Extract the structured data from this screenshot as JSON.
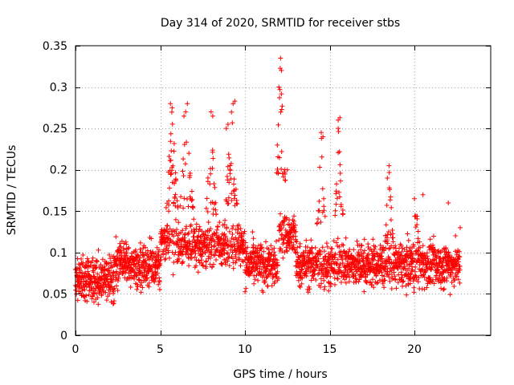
{
  "chart_data": {
    "type": "scatter",
    "title": "Day 314 of 2020, SRMTID for receiver stbs",
    "xlabel": "GPS time / hours",
    "ylabel": "SRMTID / TECUs",
    "xlim": [
      0,
      24.5
    ],
    "ylim": [
      0,
      0.35
    ],
    "xticks": [
      0,
      5,
      10,
      15,
      20
    ],
    "xtick_labels": [
      "0",
      "5",
      "10",
      "15",
      "20"
    ],
    "yticks": [
      0,
      0.05,
      0.1,
      0.15,
      0.2,
      0.25,
      0.3,
      0.35
    ],
    "ytick_labels": [
      "0",
      "0.05",
      "0.1",
      "0.15",
      "0.2",
      "0.25",
      "0.3",
      "0.35"
    ],
    "grid": true,
    "marker": "plus",
    "color": "#ff0000",
    "series": [
      {
        "name": "SRMTID",
        "x_range_hours": [
          0,
          22.7
        ],
        "baseline_mean": 0.085,
        "sample_points": [
          [
            0.5,
            0.07
          ],
          [
            1.0,
            0.09
          ],
          [
            1.5,
            0.06
          ],
          [
            2.0,
            0.05
          ],
          [
            2.5,
            0.1
          ],
          [
            3.0,
            0.11
          ],
          [
            4.0,
            0.09
          ],
          [
            5.5,
            0.15
          ],
          [
            5.6,
            0.28
          ],
          [
            5.7,
            0.275
          ],
          [
            6.4,
            0.265
          ],
          [
            6.5,
            0.27
          ],
          [
            6.6,
            0.28
          ],
          [
            8.0,
            0.27
          ],
          [
            8.1,
            0.265
          ],
          [
            8.9,
            0.25
          ],
          [
            9.0,
            0.255
          ],
          [
            9.3,
            0.28
          ],
          [
            9.4,
            0.283
          ],
          [
            10.5,
            0.1
          ],
          [
            12.0,
            0.3
          ],
          [
            12.1,
            0.335
          ],
          [
            12.15,
            0.32
          ],
          [
            12.2,
            0.277
          ],
          [
            12.5,
            0.2
          ],
          [
            14.5,
            0.245
          ],
          [
            14.6,
            0.24
          ],
          [
            15.5,
            0.26
          ],
          [
            15.6,
            0.263
          ],
          [
            15.5,
            0.25
          ],
          [
            16.0,
            0.1
          ],
          [
            18.5,
            0.205
          ],
          [
            18.4,
            0.19
          ],
          [
            20.0,
            0.165
          ],
          [
            20.5,
            0.17
          ],
          [
            21.0,
            0.08
          ],
          [
            22.0,
            0.16
          ],
          [
            22.7,
            0.13
          ]
        ],
        "bursts": [
          {
            "center_hours": 5.7,
            "width_hours": 0.35,
            "peak": 0.28
          },
          {
            "center_hours": 6.55,
            "width_hours": 0.4,
            "peak": 0.275
          },
          {
            "center_hours": 8.0,
            "width_hours": 0.3,
            "peak": 0.265
          },
          {
            "center_hours": 9.2,
            "width_hours": 0.35,
            "peak": 0.283
          },
          {
            "center_hours": 12.1,
            "width_hours": 0.3,
            "peak": 0.335
          },
          {
            "center_hours": 14.5,
            "width_hours": 0.25,
            "peak": 0.245
          },
          {
            "center_hours": 15.55,
            "width_hours": 0.25,
            "peak": 0.263
          },
          {
            "center_hours": 18.5,
            "width_hours": 0.25,
            "peak": 0.205
          },
          {
            "center_hours": 20.1,
            "width_hours": 0.3,
            "peak": 0.17
          }
        ]
      }
    ]
  }
}
